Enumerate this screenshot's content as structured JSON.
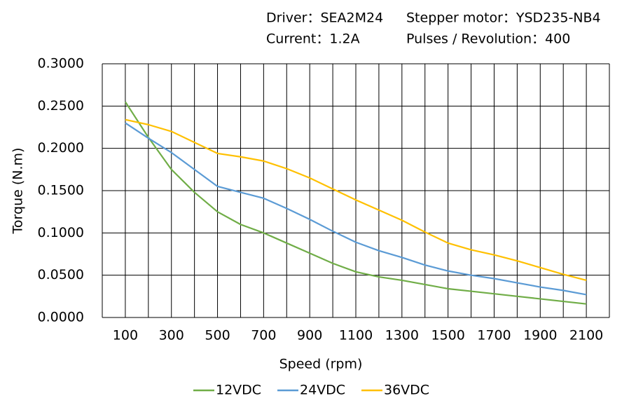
{
  "chart_data": {
    "type": "line",
    "info": [
      "Driver：SEA2M24",
      "Stepper motor：YSD235-NB4",
      "Current：1.2A",
      "Pulses / Revolution：400"
    ],
    "xlabel": "Speed  (rpm)",
    "ylabel": "Torque (N.m)",
    "x": [
      100,
      200,
      300,
      400,
      500,
      600,
      700,
      800,
      900,
      1000,
      1100,
      1200,
      1300,
      1400,
      1500,
      1600,
      1700,
      1800,
      1900,
      2000,
      2100
    ],
    "series": [
      {
        "name": "12VDC",
        "color": "#70ad47",
        "values": [
          0.255,
          0.213,
          0.175,
          0.148,
          0.125,
          0.11,
          0.1,
          0.088,
          0.076,
          0.064,
          0.054,
          0.048,
          0.044,
          0.039,
          0.034,
          0.031,
          0.028,
          0.025,
          0.022,
          0.019,
          0.016
        ]
      },
      {
        "name": "24VDC",
        "color": "#5b9bd5",
        "values": [
          0.23,
          0.212,
          0.195,
          0.175,
          0.155,
          0.148,
          0.141,
          0.129,
          0.116,
          0.102,
          0.089,
          0.079,
          0.071,
          0.062,
          0.055,
          0.05,
          0.046,
          0.041,
          0.036,
          0.032,
          0.027
        ]
      },
      {
        "name": "36VDC",
        "color": "#ffc000",
        "values": [
          0.234,
          0.228,
          0.22,
          0.207,
          0.194,
          0.19,
          0.185,
          0.176,
          0.165,
          0.152,
          0.139,
          0.127,
          0.115,
          0.101,
          0.088,
          0.08,
          0.074,
          0.067,
          0.059,
          0.051,
          0.044
        ]
      }
    ],
    "xlim": [
      0,
      2200
    ],
    "xticks": [
      100,
      300,
      500,
      700,
      900,
      1100,
      1300,
      1500,
      1700,
      1900,
      2100
    ],
    "x_minor_ticks": [
      0,
      200,
      400,
      600,
      800,
      1000,
      1200,
      1400,
      1600,
      1800,
      2000,
      2200
    ],
    "ylim": [
      0,
      0.3
    ],
    "yticks": [
      {
        "value": 0,
        "label": "0.0000"
      },
      {
        "value": 0.05,
        "label": "0.0500"
      },
      {
        "value": 0.1,
        "label": "0.1000"
      },
      {
        "value": 0.15,
        "label": "0.1500"
      },
      {
        "value": 0.2,
        "label": "0.2000"
      },
      {
        "value": 0.25,
        "label": "0.2500"
      },
      {
        "value": 0.3,
        "label": "0.3000"
      }
    ],
    "grid": true,
    "legend": "bottom"
  }
}
